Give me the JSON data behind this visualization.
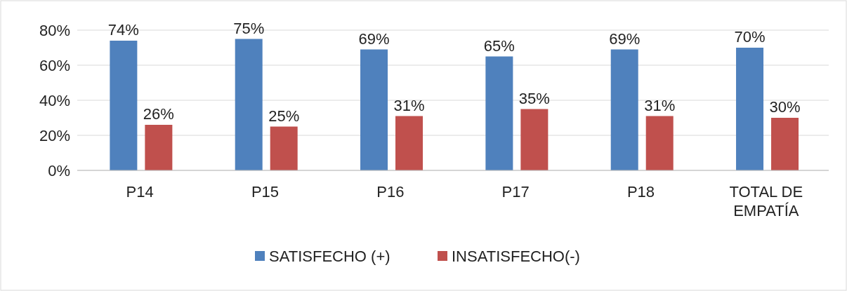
{
  "chart_data": {
    "type": "bar",
    "categories": [
      "P14",
      "P15",
      "P16",
      "P17",
      "P18",
      "TOTAL DE EMPATÍA"
    ],
    "series": [
      {
        "name": "SATISFECHO (+)",
        "color": "#4f81bd",
        "values": [
          74,
          75,
          69,
          65,
          69,
          70
        ],
        "value_labels": [
          "74%",
          "75%",
          "69%",
          "65%",
          "69%",
          "70%"
        ]
      },
      {
        "name": "INSATISFECHO(-)",
        "color": "#c0504d",
        "values": [
          26,
          25,
          31,
          35,
          31,
          30
        ],
        "value_labels": [
          "26%",
          "25%",
          "31%",
          "35%",
          "31%",
          "30%"
        ]
      }
    ],
    "ylim": [
      0,
      80
    ],
    "yticks": [
      {
        "value": 0,
        "label": "0%"
      },
      {
        "value": 20,
        "label": "20%"
      },
      {
        "value": 40,
        "label": "40%"
      },
      {
        "value": 60,
        "label": "60%"
      },
      {
        "value": 80,
        "label": "80%"
      }
    ],
    "grid": "y",
    "legend": "bottom"
  }
}
